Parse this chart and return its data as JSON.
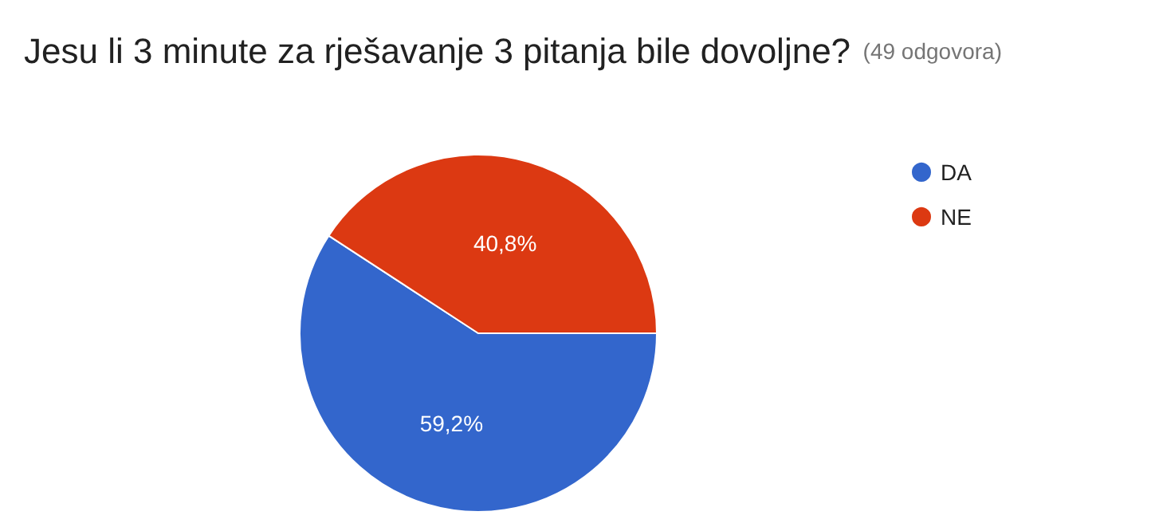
{
  "chart_data": {
    "type": "pie",
    "title": "Jesu li 3 minute za rješavanje 3 pitanja bile dovoljne?",
    "subtitle": "(49 odgovora)",
    "categories": [
      "DA",
      "NE"
    ],
    "values": [
      59.2,
      40.8
    ],
    "colors": [
      "#3366cc",
      "#dc3912"
    ],
    "value_labels": [
      "59,2%",
      "40,8%"
    ],
    "legend": "top right"
  }
}
